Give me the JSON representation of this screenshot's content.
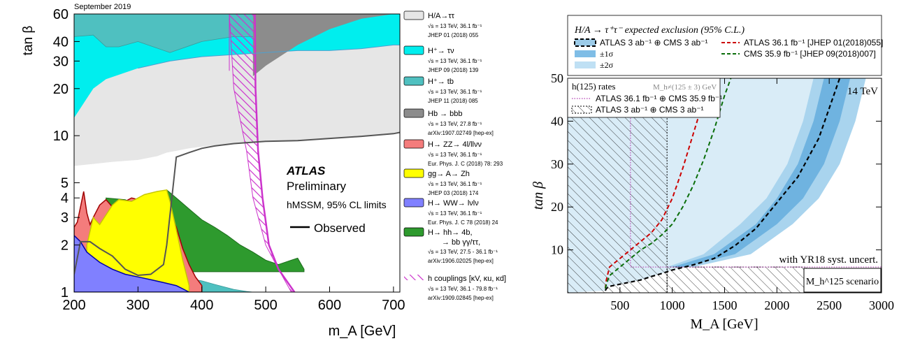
{
  "chart_data": [
    {
      "type": "area",
      "header": "September 2019",
      "xlabel": "m_A [GeV]",
      "ylabel": "tan β",
      "xlim": [
        200,
        710
      ],
      "ylim": [
        1,
        60
      ],
      "yscale": "log",
      "xticks": [
        200,
        300,
        400,
        500,
        600,
        700
      ],
      "yticks": [
        1,
        2,
        3,
        4,
        5,
        10,
        20,
        30,
        40,
        60
      ],
      "annotation": {
        "title": "ATLAS",
        "subtitle": "Preliminary",
        "scenario": "hMSSM, 95% CL limits",
        "observed": "Observed"
      },
      "legend": [
        {
          "name": "H/A→ττ",
          "info": [
            "√s = 13 TeV, 36.1 fb⁻¹",
            "JHEP 01 (2018) 055"
          ],
          "color": "#e6e6e6"
        },
        {
          "name": "H⁺→ τν",
          "info": [
            "√s = 13 TeV, 36.1 fb⁻¹",
            "JHEP 09 (2018) 139"
          ],
          "color": "#00eeee"
        },
        {
          "name": "H⁺→ tb",
          "info": [
            "√s = 13 TeV, 36.1 fb⁻¹",
            "JHEP 11 (2018) 085"
          ],
          "color": "#4fc0c0"
        },
        {
          "name": "Hb → bbb",
          "info": [
            "√s = 13 TeV, 27.8 fb⁻¹",
            "arXiv:1907.02749 [hep-ex]"
          ],
          "color": "#8c8c8c"
        },
        {
          "name": "H→ ZZ→ 4l/llνν",
          "info": [
            "√s = 13 TeV, 36.1 fb⁻¹",
            "Eur. Phys. J. C (2018) 78: 293"
          ],
          "color": "#f47c7c"
        },
        {
          "name": "gg→ A→ Zh",
          "info": [
            "√s = 13 TeV, 36.1 fb⁻¹",
            "JHEP 03 (2018) 174"
          ],
          "color": "#ffff00"
        },
        {
          "name": "H→ WW→ lνlν",
          "info": [
            "√s = 13 TeV, 36.1 fb⁻¹",
            "Eur. Phys. J. C 78 (2018) 24"
          ],
          "color": "#8080ff"
        },
        {
          "name": "H→ hh→ 4b,",
          "name2": "→ bb γγ/ττ,",
          "info": [
            "√s = 13 TeV, 27.5 - 36.1 fb⁻¹",
            "arXiv:1906.02025 [hep-ex]"
          ],
          "color": "#2e9a2e"
        },
        {
          "name": "h couplings [κV, κu, κd]",
          "info": [
            "√s = 13 TeV, 36.1 - 79.8 fb⁻¹",
            "arXiv:1909.02845 [hep-ex]"
          ],
          "color": "#cc33cc"
        }
      ],
      "regions": {
        "tautau_boundary": {
          "x": [
            200,
            230,
            260,
            300,
            330,
            345,
            360,
            380,
            420,
            460,
            500,
            540,
            560,
            600,
            650,
            700,
            710
          ],
          "y": [
            6.4,
            6.6,
            6.8,
            7,
            7.4,
            7.8,
            8,
            8.3,
            8.7,
            9,
            9.2,
            9.3,
            9.4,
            9.6,
            9.8,
            10.4,
            10.5
          ]
        },
        "hpm_taunu": {
          "x": [
            200,
            230,
            250,
            300,
            350,
            400,
            450,
            500,
            550,
            600,
            650,
            700,
            710
          ],
          "y": [
            13,
            20,
            23,
            27,
            30,
            32,
            33,
            34,
            35,
            35,
            36,
            38,
            38
          ]
        },
        "hpm_tb_upper": {
          "x": [
            200,
            230,
            250,
            270,
            300,
            350,
            400,
            450,
            500,
            550,
            600,
            650,
            700,
            710
          ],
          "y": [
            43,
            44,
            37,
            37,
            40,
            34,
            40,
            43,
            43,
            47,
            55,
            60,
            60,
            60
          ]
        },
        "hb_bbb": {
          "x": [
            480,
            500,
            550,
            600,
            650,
            700,
            710
          ],
          "y": [
            24,
            28,
            38,
            48,
            56,
            60,
            60
          ]
        },
        "hpm_tb_lower": {
          "x": [
            200,
            220,
            240,
            260,
            280,
            300,
            320,
            340,
            345,
            360,
            380,
            400,
            420,
            450,
            470,
            480
          ],
          "y": [
            1.95,
            1.8,
            1.6,
            1.45,
            1.35,
            1.3,
            1.3,
            1.28,
            1.3,
            1.28,
            1.22,
            1.18,
            1.12,
            1.04,
            1.01,
            1.0
          ]
        },
        "zz_4l": {
          "x": [
            200,
            205,
            210,
            215,
            220,
            225,
            230,
            240,
            250,
            260,
            270,
            280,
            290,
            300,
            310,
            320,
            330,
            340,
            350,
            360,
            370,
            380,
            390,
            400
          ],
          "y": [
            2.6,
            2.8,
            3.5,
            4.4,
            3.2,
            2.7,
            3.0,
            3.6,
            3.9,
            3.5,
            3.4,
            3.8,
            4.0,
            3.9,
            3.7,
            3.5,
            3.6,
            3.4,
            3.2,
            2.6,
            1.9,
            1.5,
            1.25,
            1.1
          ]
        },
        "gg_A_Zh": {
          "x": [
            220,
            230,
            240,
            260,
            270,
            290,
            310,
            330,
            345,
            350,
            360,
            370,
            380
          ],
          "y": [
            2.0,
            3.0,
            2.7,
            3.6,
            3.9,
            3.8,
            4.2,
            4.4,
            4.5,
            3.8,
            2.5,
            1.6,
            1.1
          ]
        },
        "ww": {
          "x": [
            200,
            210,
            220,
            240,
            260,
            280,
            300,
            320,
            340,
            360,
            370,
            380
          ],
          "y": [
            2.3,
            2.1,
            1.8,
            1.55,
            1.4,
            1.3,
            1.25,
            1.2,
            1.15,
            1.1,
            1.05,
            1.0
          ]
        },
        "hh_4b": {
          "x": [
            250,
            280,
            300,
            330,
            345,
            360,
            380,
            400,
            420,
            440,
            460,
            480,
            500,
            520,
            540,
            550,
            560
          ],
          "y": [
            4.0,
            3.9,
            3.6,
            4.0,
            4.5,
            4.0,
            3.4,
            2.9,
            2.6,
            2.3,
            2.0,
            1.8,
            1.6,
            1.5,
            1.6,
            1.65,
            1.4
          ]
        },
        "h_couplings_band": {
          "xlow_top": 443,
          "xhigh_top": 483,
          "x_at": [
            443,
            450,
            470,
            480,
            500,
            520,
            540
          ],
          "y_at": [
            60,
            20,
            8,
            4,
            2,
            1.4,
            1.0
          ]
        },
        "observed_curve": {
          "x": [
            200,
            210,
            225,
            240,
            260,
            280,
            300,
            320,
            340,
            345,
            360,
            380,
            400,
            420,
            450,
            500,
            550,
            600,
            650,
            700,
            710
          ],
          "y": [
            1.3,
            2.1,
            2.1,
            1.9,
            1.7,
            1.4,
            1.28,
            1.3,
            1.5,
            2.0,
            7.3,
            7.8,
            8.3,
            8.6,
            8.9,
            9.2,
            9.3,
            9.6,
            9.9,
            10.3,
            10.5
          ]
        }
      }
    },
    {
      "type": "line",
      "xlabel": "M_A [GeV]",
      "ylabel": "tan β",
      "xlim": [
        0,
        3000
      ],
      "ylim": [
        0,
        50
      ],
      "xticks": [
        500,
        1000,
        1500,
        2000,
        2500,
        3000
      ],
      "yticks": [
        10,
        20,
        30,
        40,
        50
      ],
      "annotations": [
        "14 TeV",
        "with YR18 syst. uncert.",
        "M_h^125 scenario"
      ],
      "legend": {
        "title": "H/A → τ⁺τ⁻ expected exclusion (95% C.L.)",
        "entries": [
          {
            "label": "ATLAS 3 ab⁻¹ ⊕ CMS 3 ab⁻¹",
            "style": "dashed-black-box"
          },
          {
            "label": "±1σ",
            "style": "band-mid-blue"
          },
          {
            "label": "±2σ",
            "style": "band-light-blue"
          },
          {
            "label": "ATLAS 36.1 fb⁻¹ [JHEP 01(2018)055]",
            "style": "dashed-red"
          },
          {
            "label": "CMS 35.9 fb⁻¹ [JHEP 09(2018)007]",
            "style": "dashed-green"
          }
        ]
      },
      "legend2": {
        "title": "h(125) rates",
        "note": "M_h≠(125 ± 3) GeV",
        "entries": [
          {
            "label": "ATLAS 36.1 fb⁻¹ ⊕ CMS 35.9 fb⁻¹",
            "style": "dotted-violet"
          },
          {
            "label": "ATLAS 3 ab⁻¹ ⊕ CMS 3 ab⁻¹",
            "style": "hatched"
          }
        ]
      },
      "series": [
        {
          "name": "ATLAS 3 ab⁻¹ ⊕ CMS 3 ab⁻¹",
          "x": [
            360,
            370,
            400,
            500,
            600,
            700,
            800,
            900,
            1000,
            1100,
            1200,
            1400,
            1600,
            1800,
            2000,
            2200,
            2400,
            2500,
            2600
          ],
          "y": [
            0.5,
            1,
            1.5,
            2,
            2.5,
            3,
            3.8,
            4.5,
            5.3,
            5.9,
            6.5,
            8,
            11,
            15,
            21,
            27,
            36,
            43,
            50
          ]
        },
        {
          "name": "ATLAS 36.1 fb⁻¹ [JHEP 01(2018)055]",
          "x": [
            360,
            370,
            400,
            500,
            600,
            700,
            800,
            900,
            1000,
            1100,
            1200,
            1300,
            1350
          ],
          "y": [
            1,
            3,
            6,
            8,
            10,
            12,
            14,
            17,
            22,
            29,
            37,
            45,
            50
          ]
        },
        {
          "name": "CMS 35.9 fb⁻¹ [JHEP 09(2018)007]",
          "x": [
            360,
            370,
            400,
            500,
            600,
            700,
            800,
            900,
            1000,
            1100,
            1200,
            1300,
            1400,
            1500,
            1560
          ],
          "y": [
            1,
            2,
            4,
            6,
            8,
            10,
            11.5,
            13.5,
            16,
            20,
            25,
            31,
            38,
            46,
            50
          ]
        }
      ],
      "band_1sigma": {
        "x_low": [
          1000,
          1400,
          1800,
          2000,
          2200,
          2350,
          2450
        ],
        "x_high": [
          1100,
          1600,
          2000,
          2250,
          2450,
          2600,
          2700
        ],
        "y": [
          6,
          9,
          16,
          22,
          30,
          40,
          50
        ]
      },
      "band_2sigma": {
        "x_low": [
          950,
          1300,
          1650,
          1900,
          2100,
          2250,
          2350
        ],
        "x_high": [
          1200,
          1750,
          2150,
          2400,
          2600,
          2750,
          2850
        ],
        "y": [
          6,
          9,
          16,
          22,
          30,
          40,
          50
        ]
      },
      "violet_dotted": {
        "x": [
          600,
          600,
          3000
        ],
        "y": [
          43,
          6,
          6
        ]
      },
      "hatched_region": {
        "xmax": 950,
        "ymin": 0,
        "ymax": 41,
        "ymax_bottom": 6,
        "x_bottom_max": 2280
      }
    }
  ]
}
